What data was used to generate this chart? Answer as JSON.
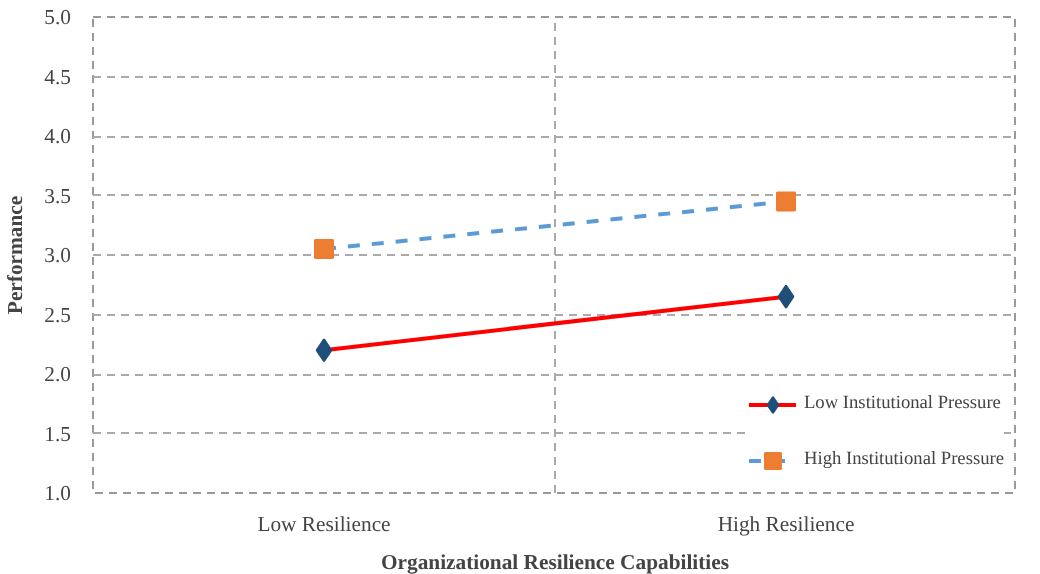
{
  "chart_data": {
    "type": "line",
    "xlabel": "Organizational Resilience Capabilities",
    "ylabel": "Performance",
    "categories": [
      "Low Resilience",
      "High Resilience"
    ],
    "series": [
      {
        "name": "Low Institutional Pressure",
        "color": "#ff0000",
        "colors": [
          "#1f4e79",
          "#1f4e79"
        ],
        "marker": "diamond",
        "line_style": "solid",
        "values": [
          2.2,
          2.65
        ]
      },
      {
        "name": "High Institutional Pressure",
        "color": "#5b9bd5",
        "colors": [
          "#ed7d31",
          "#ed7d31"
        ],
        "marker": "square",
        "line_style": "dashed",
        "values": [
          3.05,
          3.45
        ]
      }
    ],
    "ylim": [
      1,
      5
    ],
    "yticks": [
      {
        "value": 1,
        "label": "1.0"
      },
      {
        "value": 1.5,
        "label": "1.5"
      },
      {
        "value": 2,
        "label": "2.0"
      },
      {
        "value": 2.5,
        "label": "2.5"
      },
      {
        "value": 3,
        "label": "3.0"
      },
      {
        "value": 3.5,
        "label": "3.5"
      },
      {
        "value": 4,
        "label": "4.0"
      },
      {
        "value": 4.5,
        "label": "4.5"
      },
      {
        "value": 5,
        "label": "5.0"
      }
    ],
    "grid": true,
    "legend": "bottom right"
  }
}
